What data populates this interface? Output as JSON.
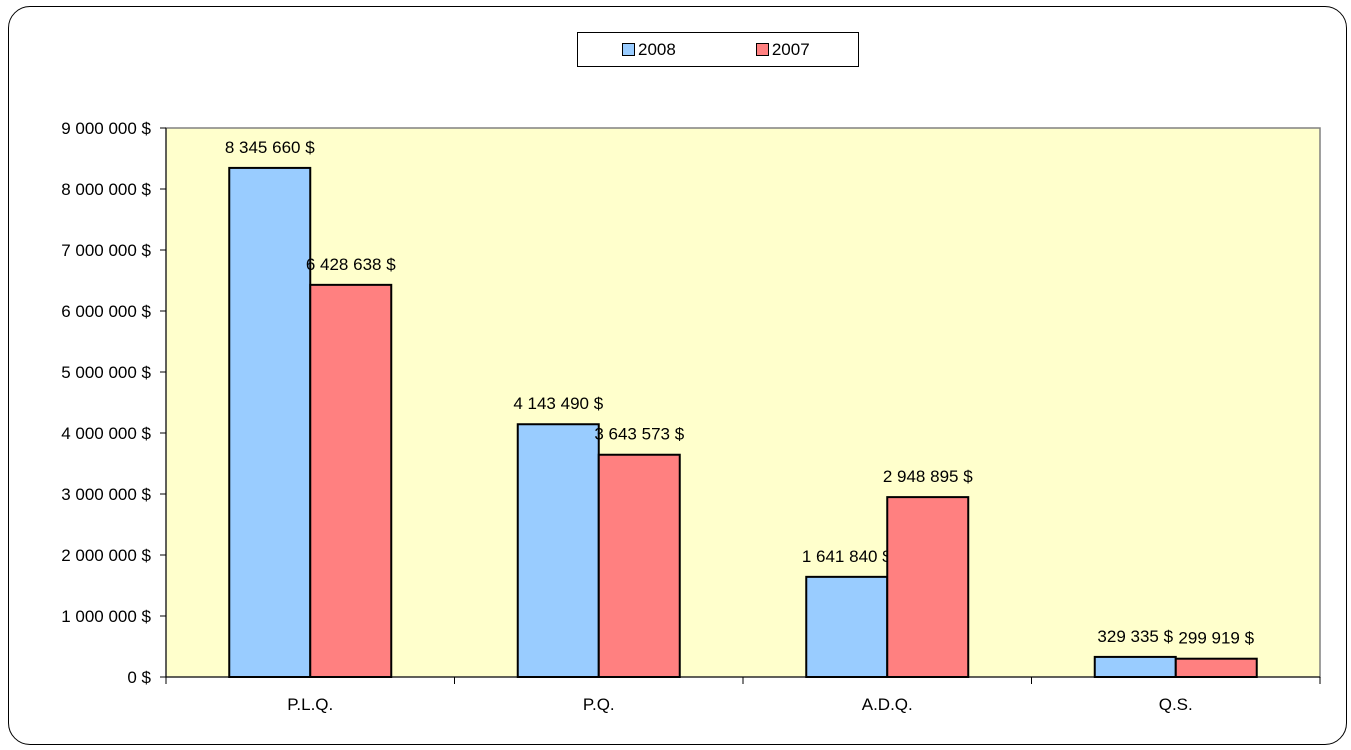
{
  "chart_data": {
    "type": "bar",
    "categories": [
      "P.L.Q.",
      "P.Q.",
      "A.D.Q.",
      "Q.S."
    ],
    "series": [
      {
        "name": "2008",
        "color": "#99ccff",
        "values": [
          8345660,
          4143490,
          1641840,
          329335
        ],
        "labels": [
          "8 345 660 $",
          "4 143 490 $",
          "1 641 840 $",
          "329 335 $"
        ]
      },
      {
        "name": "2007",
        "color": "#ff8080",
        "values": [
          6428638,
          3643573,
          2948895,
          299919
        ],
        "labels": [
          "6 428 638 $",
          "3 643 573 $",
          "2 948 895 $",
          "299 919 $"
        ]
      }
    ],
    "ylim": [
      0,
      9000000
    ],
    "yticks": [
      0,
      1000000,
      2000000,
      3000000,
      4000000,
      5000000,
      6000000,
      7000000,
      8000000,
      9000000
    ],
    "ytick_labels": [
      "0 $",
      "1 000 000 $",
      "2 000 000 $",
      "3 000 000 $",
      "4 000 000 $",
      "5 000 000 $",
      "6 000 000 $",
      "7 000 000 $",
      "8 000 000 $",
      "9 000 000 $"
    ],
    "plot_background": "#ffffcc",
    "grid": false,
    "legend_position": "top-center",
    "title": "",
    "xlabel": "",
    "ylabel": ""
  }
}
